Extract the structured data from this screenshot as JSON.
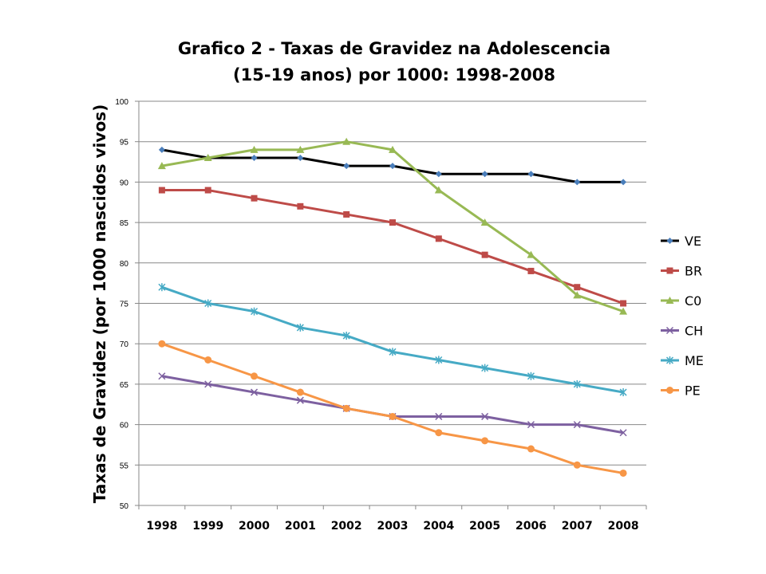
{
  "chart_data": {
    "type": "line",
    "title": [
      "Grafico 2 - Taxas de Gravidez na Adolescencia",
      "(15-19 anos) por 1000: 1998-2008"
    ],
    "ylabel": "Taxas de Gravidez (por 1000 nascidos vivos)",
    "xlabel": "",
    "categories": [
      "1998",
      "1999",
      "2000",
      "2001",
      "2002",
      "2003",
      "2004",
      "2005",
      "2006",
      "2007",
      "2008"
    ],
    "ylim": [
      50,
      100
    ],
    "yticks": [
      100,
      95,
      90,
      85,
      80,
      75,
      70,
      65,
      60,
      55,
      50
    ],
    "grid": true,
    "legend": "right",
    "series": [
      {
        "name": "VE",
        "color": "#000000",
        "marker": "diamond",
        "marker_color": "#4A7EBB",
        "values": [
          94,
          93,
          93,
          93,
          92,
          92,
          91,
          91,
          91,
          90,
          90
        ]
      },
      {
        "name": "BR",
        "color": "#BE4B48",
        "marker": "square",
        "marker_color": "#BE4B48",
        "values": [
          89,
          89,
          88,
          87,
          86,
          85,
          83,
          81,
          79,
          77,
          75
        ]
      },
      {
        "name": "C0",
        "color": "#98B954",
        "marker": "triangle",
        "marker_color": "#98B954",
        "values": [
          92,
          93,
          94,
          94,
          95,
          94,
          89,
          85,
          81,
          76,
          74
        ]
      },
      {
        "name": "CH",
        "color": "#7D60A0",
        "marker": "x",
        "marker_color": "#7D60A0",
        "values": [
          66,
          65,
          64,
          63,
          62,
          61,
          61,
          61,
          60,
          60,
          59
        ]
      },
      {
        "name": "ME",
        "color": "#46AAC5",
        "marker": "star",
        "marker_color": "#46AAC5",
        "values": [
          77,
          75,
          74,
          72,
          71,
          69,
          68,
          67,
          66,
          65,
          64
        ]
      },
      {
        "name": "PE",
        "color": "#F79646",
        "marker": "circle",
        "marker_color": "#F79646",
        "values": [
          70,
          68,
          66,
          64,
          62,
          61,
          59,
          58,
          57,
          55,
          54
        ]
      }
    ]
  }
}
